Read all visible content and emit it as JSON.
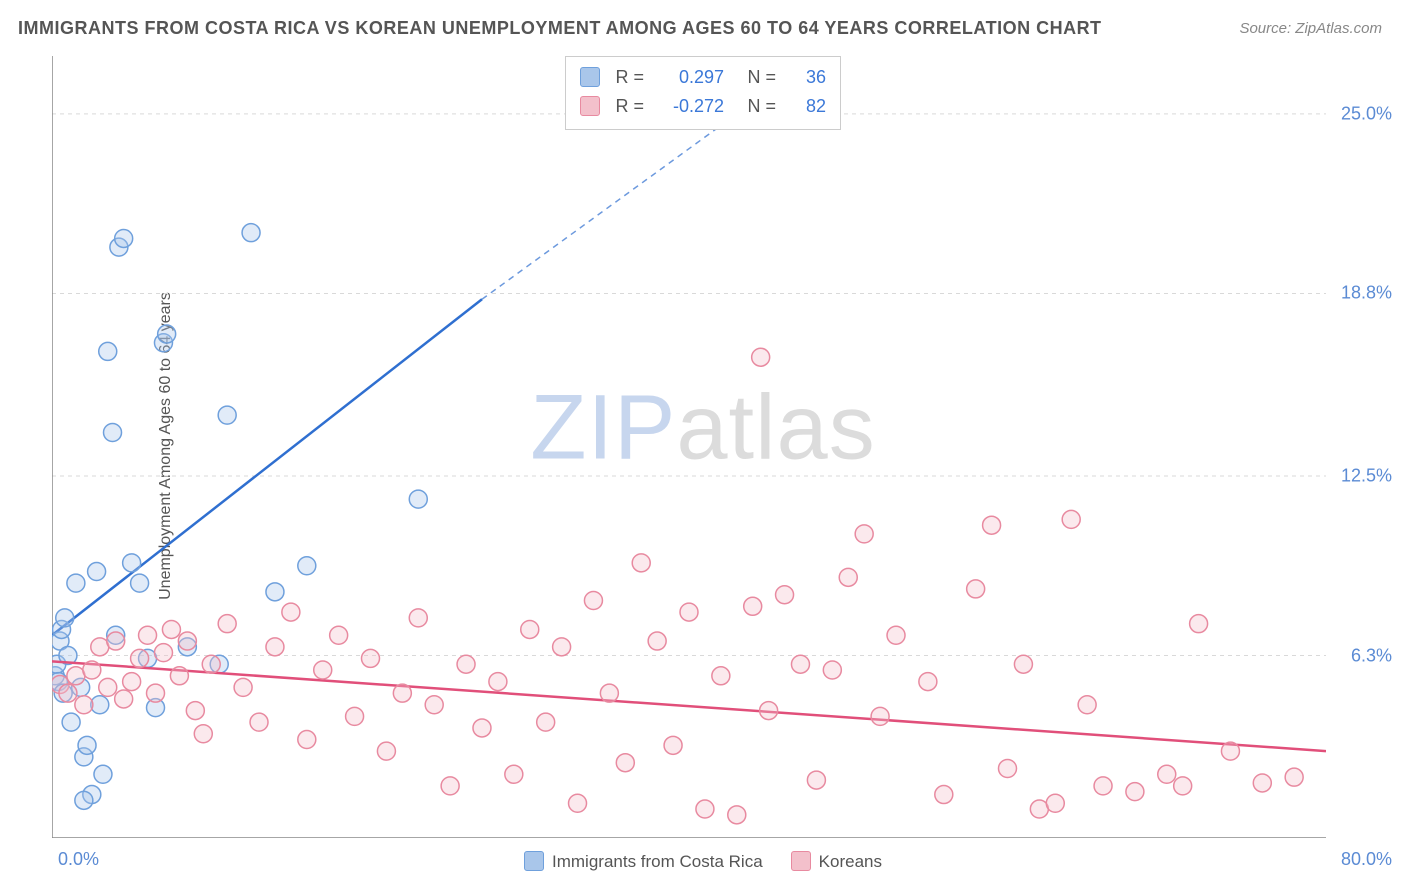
{
  "title": "IMMIGRANTS FROM COSTA RICA VS KOREAN UNEMPLOYMENT AMONG AGES 60 TO 64 YEARS CORRELATION CHART",
  "source_label": "Source: ZipAtlas.com",
  "ylabel": "Unemployment Among Ages 60 to 64 years",
  "watermark": {
    "prefix": "ZIP",
    "suffix": "atlas"
  },
  "chart": {
    "type": "scatter-with-regression",
    "background_color": "#ffffff",
    "grid_color": "#d9d9d9",
    "axis_color": "#888888",
    "tick_label_color": "#5b8bd4",
    "label_fontsize": 16,
    "tick_fontsize": 18,
    "xlim": [
      0,
      80
    ],
    "ylim": [
      0,
      27
    ],
    "x_origin_label": "0.0%",
    "x_max_label": "80.0%",
    "y_ticks": [
      6.3,
      12.5,
      18.8,
      25.0
    ],
    "y_tick_labels": [
      "6.3%",
      "12.5%",
      "18.8%",
      "25.0%"
    ],
    "marker_radius": 9,
    "marker_stroke_width": 1.5,
    "marker_fill_opacity": 0.35,
    "line_width": 2.5,
    "dash_pattern": "6,5",
    "series": [
      {
        "name": "Immigrants from Costa Rica",
        "color_fill": "#a9c6ea",
        "color_stroke": "#6fa0dc",
        "line_color": "#2f6fd0",
        "R": "0.297",
        "N": "36",
        "regression": {
          "x1": 0,
          "y1": 7.0,
          "solid_x2": 27,
          "solid_y2": 18.6,
          "dash_x2": 48,
          "dash_y2": 27.0
        },
        "points": [
          [
            0.2,
            5.6
          ],
          [
            0.3,
            6.0
          ],
          [
            0.4,
            5.4
          ],
          [
            0.5,
            6.8
          ],
          [
            0.6,
            7.2
          ],
          [
            0.7,
            5.0
          ],
          [
            0.8,
            7.6
          ],
          [
            1.0,
            6.3
          ],
          [
            1.2,
            4.0
          ],
          [
            1.5,
            8.8
          ],
          [
            1.8,
            5.2
          ],
          [
            2.0,
            2.8
          ],
          [
            2.2,
            3.2
          ],
          [
            2.5,
            1.5
          ],
          [
            2.8,
            9.2
          ],
          [
            3.0,
            4.6
          ],
          [
            3.2,
            2.2
          ],
          [
            3.5,
            16.8
          ],
          [
            3.8,
            14.0
          ],
          [
            4.0,
            7.0
          ],
          [
            4.2,
            20.4
          ],
          [
            4.5,
            20.7
          ],
          [
            5.0,
            9.5
          ],
          [
            5.5,
            8.8
          ],
          [
            6.0,
            6.2
          ],
          [
            6.5,
            4.5
          ],
          [
            7.0,
            17.1
          ],
          [
            7.2,
            17.4
          ],
          [
            8.5,
            6.6
          ],
          [
            10.5,
            6.0
          ],
          [
            11.0,
            14.6
          ],
          [
            12.5,
            20.9
          ],
          [
            14.0,
            8.5
          ],
          [
            16.0,
            9.4
          ],
          [
            23.0,
            11.7
          ],
          [
            2.0,
            1.3
          ]
        ]
      },
      {
        "name": "Koreans",
        "color_fill": "#f3c0cb",
        "color_stroke": "#e88aa0",
        "line_color": "#e14f7a",
        "R": "-0.272",
        "N": "82",
        "regression": {
          "x1": 0,
          "y1": 6.1,
          "solid_x2": 80,
          "solid_y2": 3.0,
          "dash_x2": 80,
          "dash_y2": 3.0
        },
        "points": [
          [
            0.5,
            5.3
          ],
          [
            1,
            5.0
          ],
          [
            1.5,
            5.6
          ],
          [
            2,
            4.6
          ],
          [
            2.5,
            5.8
          ],
          [
            3,
            6.6
          ],
          [
            3.5,
            5.2
          ],
          [
            4,
            6.8
          ],
          [
            4.5,
            4.8
          ],
          [
            5,
            5.4
          ],
          [
            5.5,
            6.2
          ],
          [
            6,
            7.0
          ],
          [
            6.5,
            5.0
          ],
          [
            7,
            6.4
          ],
          [
            7.5,
            7.2
          ],
          [
            8,
            5.6
          ],
          [
            8.5,
            6.8
          ],
          [
            9,
            4.4
          ],
          [
            9.5,
            3.6
          ],
          [
            10,
            6.0
          ],
          [
            11,
            7.4
          ],
          [
            12,
            5.2
          ],
          [
            13,
            4.0
          ],
          [
            14,
            6.6
          ],
          [
            15,
            7.8
          ],
          [
            16,
            3.4
          ],
          [
            17,
            5.8
          ],
          [
            18,
            7.0
          ],
          [
            19,
            4.2
          ],
          [
            20,
            6.2
          ],
          [
            21,
            3.0
          ],
          [
            22,
            5.0
          ],
          [
            23,
            7.6
          ],
          [
            24,
            4.6
          ],
          [
            25,
            1.8
          ],
          [
            26,
            6.0
          ],
          [
            27,
            3.8
          ],
          [
            28,
            5.4
          ],
          [
            29,
            2.2
          ],
          [
            30,
            7.2
          ],
          [
            31,
            4.0
          ],
          [
            32,
            6.6
          ],
          [
            33,
            1.2
          ],
          [
            34,
            8.2
          ],
          [
            35,
            5.0
          ],
          [
            36,
            2.6
          ],
          [
            37,
            9.5
          ],
          [
            38,
            6.8
          ],
          [
            39,
            3.2
          ],
          [
            40,
            7.8
          ],
          [
            41,
            1.0
          ],
          [
            42,
            5.6
          ],
          [
            43,
            0.8
          ],
          [
            44,
            8.0
          ],
          [
            44.5,
            16.6
          ],
          [
            45,
            4.4
          ],
          [
            46,
            8.4
          ],
          [
            47,
            6.0
          ],
          [
            48,
            2.0
          ],
          [
            49,
            5.8
          ],
          [
            50,
            9.0
          ],
          [
            51,
            10.5
          ],
          [
            52,
            4.2
          ],
          [
            53,
            7.0
          ],
          [
            55,
            5.4
          ],
          [
            56,
            1.5
          ],
          [
            58,
            8.6
          ],
          [
            59,
            10.8
          ],
          [
            60,
            2.4
          ],
          [
            61,
            6.0
          ],
          [
            62,
            1.0
          ],
          [
            63,
            1.2
          ],
          [
            64,
            11.0
          ],
          [
            65,
            4.6
          ],
          [
            66,
            1.8
          ],
          [
            68,
            1.6
          ],
          [
            70,
            2.2
          ],
          [
            71,
            1.8
          ],
          [
            72,
            7.4
          ],
          [
            74,
            3.0
          ],
          [
            76,
            1.9
          ],
          [
            78,
            2.1
          ]
        ]
      }
    ],
    "legend_bottom": [
      {
        "label": "Immigrants from Costa Rica",
        "fill": "#a9c6ea",
        "stroke": "#6fa0dc"
      },
      {
        "label": "Koreans",
        "fill": "#f3c0cb",
        "stroke": "#e88aa0"
      }
    ]
  }
}
